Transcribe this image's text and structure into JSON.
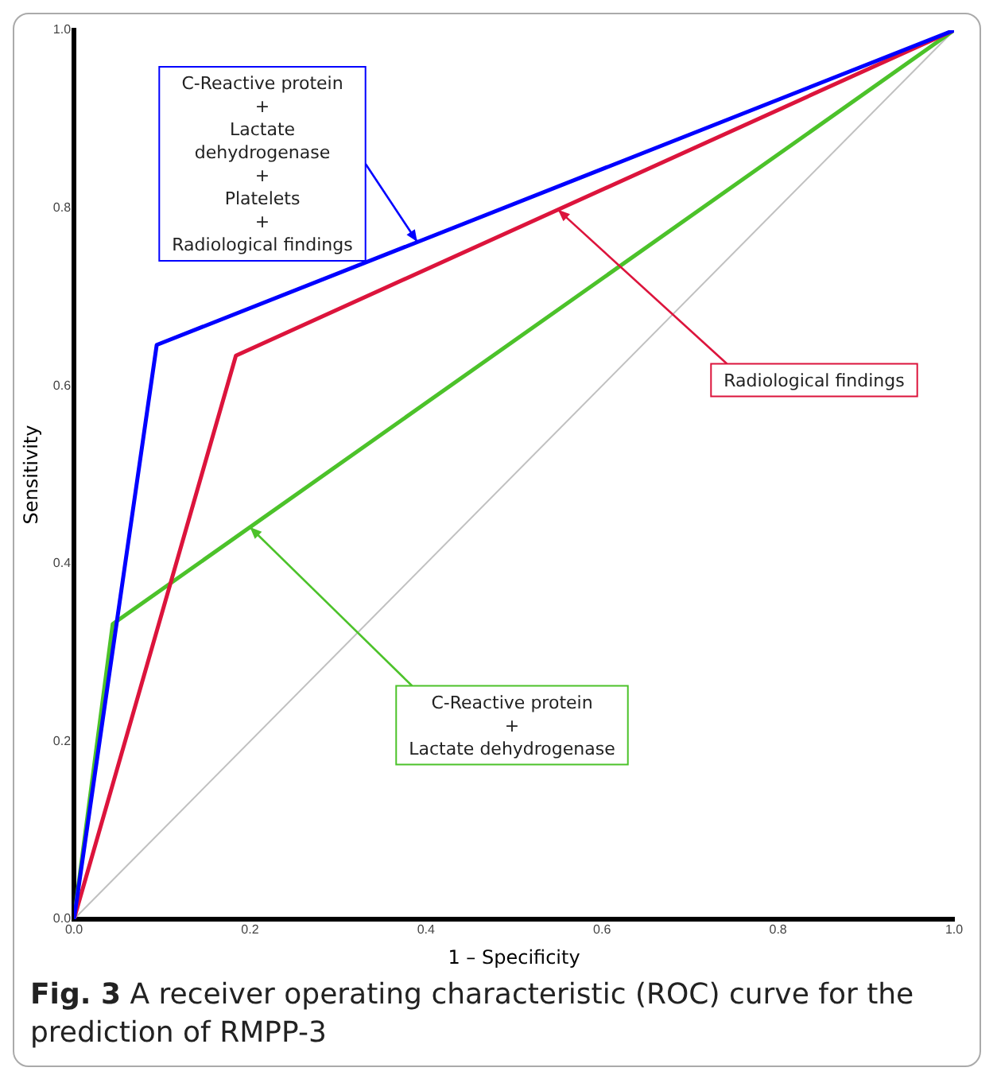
{
  "chart_data": {
    "type": "line",
    "xlabel": "1 – Specificity",
    "ylabel": "Sensitivity",
    "xlim": [
      0,
      1
    ],
    "ylim": [
      0,
      1
    ],
    "xticks": [
      {
        "value": 0,
        "label": "0.0"
      },
      0.2,
      0.4,
      0.6,
      0.8,
      {
        "value": 1,
        "label": "1.0"
      }
    ],
    "yticks": [
      {
        "value": 0,
        "label": "0.0"
      },
      0.2,
      0.4,
      0.6,
      0.8,
      {
        "value": 1,
        "label": "1.0"
      }
    ],
    "grid": false,
    "legend": false,
    "marker": "none",
    "line_style": "solid",
    "series": [
      {
        "color": "#0000ff",
        "x": [
          0,
          0.094,
          1
        ],
        "values": [
          0,
          0.646,
          1
        ]
      },
      {
        "color": "#dc143c",
        "x": [
          0,
          0.184,
          1
        ],
        "values": [
          0,
          0.634,
          1
        ]
      },
      {
        "color": "#4cc22a",
        "x": [
          0,
          0.044,
          1
        ],
        "values": [
          0,
          0.332,
          1
        ]
      },
      {
        "color": "#c0c0c0",
        "x": [
          0,
          1
        ],
        "values": [
          0,
          1
        ]
      }
    ],
    "annotations": [
      {
        "text": "C-Reactive protein\n+\nLactate\ndehydrogenase\n+\nPlatelets\n+\nRadiological findings",
        "x": 0.39,
        "y": 0.762
      },
      {
        "text": "Radiological findings",
        "x": 0.55,
        "y": 0.798
      },
      {
        "text": "C-Reactive protein\n+\nLactate dehydrogenase",
        "x": 0.2,
        "y": 0.441
      },
      "Fig. 3  A receiver operating characteristic (ROC) curve for the prediction of RMPP-3"
    ]
  }
}
